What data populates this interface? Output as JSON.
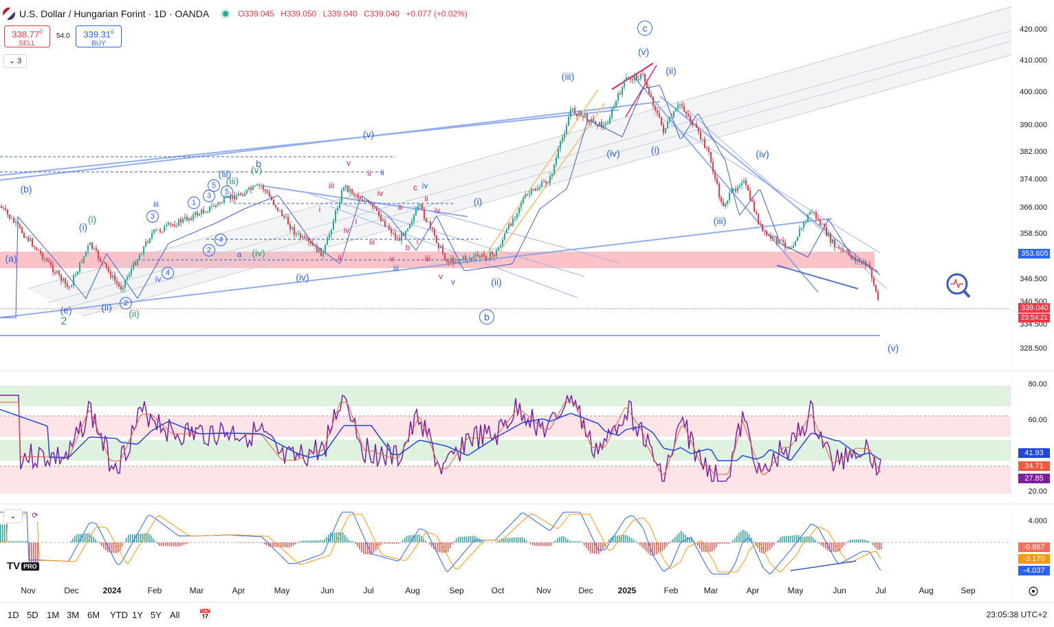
{
  "header": {
    "title": "U.S. Dollar / Hungarian Forint · 1D · OANDA",
    "open": "O339.045",
    "high": "H339.050",
    "low": "L339.040",
    "close": "C339.040",
    "change": "+0.077 (+0.02%)"
  },
  "trade": {
    "sell_price": "338.77",
    "sell_sup": "0",
    "sell_label": "SELL",
    "spread": "54.0",
    "buy_price": "339.31",
    "buy_sup": "0",
    "buy_label": "BUY"
  },
  "indicators_toggle": "3",
  "price_axis": [
    "420.000",
    "410.000",
    "400.000",
    "390.000",
    "382.000",
    "374.000",
    "366.000",
    "358.500",
    "346.500",
    "340.500",
    "334.500",
    "328.500"
  ],
  "price_tags": {
    "level": "353.605",
    "last": "339.040",
    "countdown": "23:54:21"
  },
  "rsi_axis": [
    "80.00",
    "60.00",
    "20.00"
  ],
  "rsi_tags": [
    "41.93",
    "34.71",
    "27.85"
  ],
  "macd_axis": [
    "4.000"
  ],
  "macd_tags": [
    "-0.867",
    "-3.170",
    "-4.037"
  ],
  "x_axis": [
    {
      "label": "Nov",
      "bold": false
    },
    {
      "label": "Dec",
      "bold": false
    },
    {
      "label": "2024",
      "bold": true
    },
    {
      "label": "Feb",
      "bold": false
    },
    {
      "label": "Mar",
      "bold": false
    },
    {
      "label": "Apr",
      "bold": false
    },
    {
      "label": "May",
      "bold": false
    },
    {
      "label": "Jun",
      "bold": false
    },
    {
      "label": "Jul",
      "bold": false
    },
    {
      "label": "Aug",
      "bold": false
    },
    {
      "label": "Sep",
      "bold": false
    },
    {
      "label": "Oct",
      "bold": false
    },
    {
      "label": "Nov",
      "bold": false
    },
    {
      "label": "Dec",
      "bold": false
    },
    {
      "label": "2025",
      "bold": true
    },
    {
      "label": "Feb",
      "bold": false
    },
    {
      "label": "Mar",
      "bold": false
    },
    {
      "label": "Apr",
      "bold": false
    },
    {
      "label": "May",
      "bold": false
    },
    {
      "label": "Jun",
      "bold": false
    },
    {
      "label": "Jul",
      "bold": false
    },
    {
      "label": "Aug",
      "bold": false
    },
    {
      "label": "Sep",
      "bold": false
    }
  ],
  "timeframes": [
    "1D",
    "5D",
    "1M",
    "3M",
    "6M",
    "YTD",
    "1Y",
    "5Y",
    "All"
  ],
  "clock": "23:05:38 UTC+2",
  "logo": "TV",
  "logo_badge": "PRO",
  "waves": {
    "c_circ": "c",
    "b_circ": "b",
    "v_top": "(v)",
    "ii_top": "(ii)",
    "iii_top": "(iii)",
    "iv_top": "(iv)",
    "i_top": "(i)",
    "v_mid": "(v)",
    "iv_right": "(iv)",
    "iii_right": "(iii)",
    "i_oct": "(i)",
    "ii_oct": "(ii)",
    "v_end": "(v)",
    "b_left": "(b)",
    "a_left": "(a)",
    "e_left": "(e)",
    "two": "2",
    "iv_mid": "(iv)",
    "iii_g": "(iii)",
    "v_g": "(v)",
    "iv_g": "(iv)",
    "i_g": "(i)",
    "ii_g": "(ii)",
    "i_b": "(i)",
    "ii_b": "(ii)",
    "iii_b": "(iii)",
    "b_letter": "b",
    "r_i": "i",
    "r_ii": "ii",
    "r_iii": "iii",
    "r_iv": "iv",
    "r_v": "v",
    "r_a": "a",
    "r_b": "b",
    "r_c": "c",
    "a_small": "a",
    "iii_s": "iii",
    "iv_s": "iv",
    "v_s": "v",
    "n1": "1",
    "n2": "2",
    "n3": "3",
    "n4": "4",
    "n5": "5"
  },
  "colors": {
    "up": "#22ab94",
    "down": "#f23645",
    "accent": "#2962ff",
    "rsi": "#7b1fa2",
    "zone_red": "rgba(242,54,69,0.28)",
    "zone_green": "rgba(76,175,80,0.18)"
  },
  "icons": [
    "zoom-icon",
    "chevron-down-icon",
    "refresh-icon",
    "calendar-range-icon",
    "settings-icon"
  ]
}
